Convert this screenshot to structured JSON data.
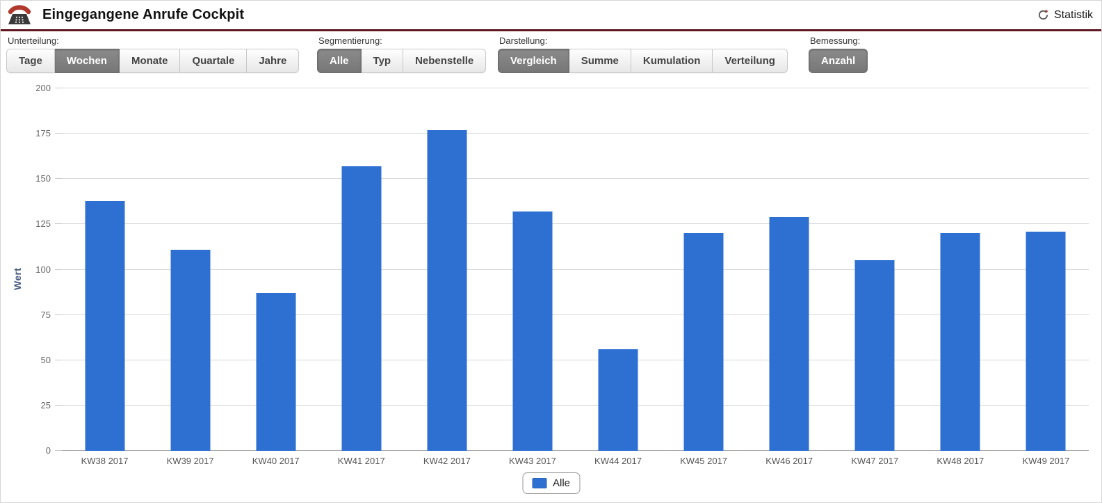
{
  "header": {
    "title": "Eingegangene Anrufe Cockpit",
    "statistik_label": "Statistik"
  },
  "toolbar": {
    "groups": [
      {
        "label": "Unterteilung:",
        "selected": "Wochen",
        "buttons": [
          {
            "label": "Tage"
          },
          {
            "label": "Wochen"
          },
          {
            "label": "Monate"
          },
          {
            "label": "Quartale"
          },
          {
            "label": "Jahre"
          }
        ]
      },
      {
        "label": "Segmentierung:",
        "selected": "Alle",
        "buttons": [
          {
            "label": "Alle"
          },
          {
            "label": "Typ"
          },
          {
            "label": "Nebenstelle"
          }
        ]
      },
      {
        "label": "Darstellung:",
        "selected": "Vergleich",
        "buttons": [
          {
            "label": "Vergleich"
          },
          {
            "label": "Summe"
          },
          {
            "label": "Kumulation"
          },
          {
            "label": "Verteilung"
          }
        ]
      },
      {
        "label": "Bemessung:",
        "selected": "Anzahl",
        "buttons": [
          {
            "label": "Anzahl"
          }
        ]
      }
    ]
  },
  "chart_data": {
    "type": "bar",
    "title": "",
    "categories": [
      "KW38 2017",
      "KW39 2017",
      "KW40 2017",
      "KW41 2017",
      "KW42 2017",
      "KW43 2017",
      "KW44 2017",
      "KW45 2017",
      "KW46 2017",
      "KW47 2017",
      "KW48 2017",
      "KW49 2017"
    ],
    "series": [
      {
        "name": "Alle",
        "color": "#2d70d2",
        "values": [
          138,
          111,
          87,
          157,
          177,
          132,
          56,
          120,
          129,
          105,
          120,
          121
        ]
      }
    ],
    "xlabel": "",
    "ylabel": "Wert",
    "ylim": [
      0,
      200
    ],
    "ytick_step": 25,
    "grid": true,
    "legend_position": "bottom"
  },
  "colors": {
    "bar": "#2d70d2",
    "accent_divider": "#5e1621",
    "selected_button": "#7d7d7d",
    "phone_red": "#b0392e",
    "phone_dark": "#3a3a3a"
  }
}
